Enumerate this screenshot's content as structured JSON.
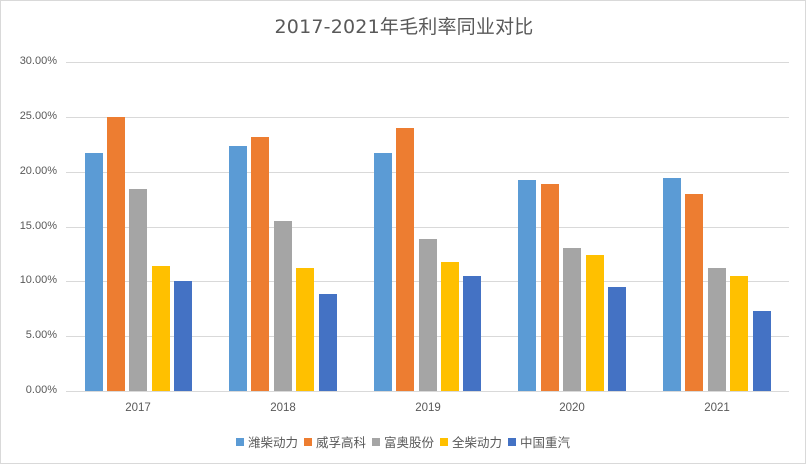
{
  "chart_data": {
    "type": "bar",
    "title": "2017-2021年毛利率同业对比",
    "xlabel": "",
    "ylabel": "",
    "ylim": [
      0,
      30
    ],
    "yticks": [
      "0.00%",
      "5.00%",
      "10.00%",
      "15.00%",
      "20.00%",
      "25.00%",
      "30.00%"
    ],
    "grid": true,
    "legend_position": "bottom",
    "categories": [
      "2017",
      "2018",
      "2019",
      "2020",
      "2021"
    ],
    "series": [
      {
        "name": "潍柴动力",
        "color": "#5b9bd5",
        "values": [
          21.7,
          22.3,
          21.7,
          19.2,
          19.4
        ]
      },
      {
        "name": "威孚高科",
        "color": "#ed7d31",
        "values": [
          25.0,
          23.2,
          24.0,
          18.9,
          18.0
        ]
      },
      {
        "name": "富奥股份",
        "color": "#a5a5a5",
        "values": [
          18.4,
          15.5,
          13.9,
          13.0,
          11.2
        ]
      },
      {
        "name": "全柴动力",
        "color": "#ffc000",
        "values": [
          11.4,
          11.2,
          11.8,
          12.4,
          10.5
        ]
      },
      {
        "name": "中国重汽",
        "color": "#4472c4",
        "values": [
          10.0,
          8.8,
          10.5,
          9.5,
          7.3
        ]
      }
    ]
  }
}
